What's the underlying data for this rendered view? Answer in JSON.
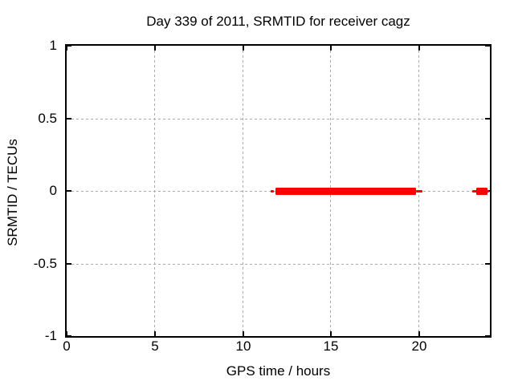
{
  "chart_data": {
    "type": "line",
    "title": "Day 339 of 2011, SRMTID for receiver cagz",
    "xlabel": "GPS time / hours",
    "ylabel": "SRMTID / TECUs",
    "xlim": [
      0,
      24
    ],
    "ylim": [
      -1,
      1
    ],
    "xticks": [
      0,
      5,
      10,
      15,
      20
    ],
    "xtick_labels": [
      "0",
      "5",
      "10",
      "15",
      "20"
    ],
    "yticks": [
      -1,
      -0.5,
      0,
      0.5,
      1
    ],
    "ytick_labels": [
      "-1",
      "-0.5",
      "0",
      "0.5",
      "1"
    ],
    "grid": true,
    "legend_position": "none",
    "colors": {
      "series": "#ff0000",
      "grid": "#aaaaaa",
      "border": "#000000",
      "background": "#ffffff",
      "text": "#000000"
    },
    "series": [
      {
        "name": "SRMTID",
        "color": "#ff0000",
        "segments": [
          {
            "x_start": 11.55,
            "x_end": 11.74,
            "y": 0,
            "linewidth": 3
          },
          {
            "x_start": 11.84,
            "x_end": 19.8,
            "y": 0,
            "linewidth": 9
          },
          {
            "x_start": 19.8,
            "x_end": 20.16,
            "y": 0,
            "linewidth": 3
          },
          {
            "x_start": 23.02,
            "x_end": 23.97,
            "y": 0,
            "linewidth": 3
          },
          {
            "x_start": 23.24,
            "x_end": 23.86,
            "y": 0,
            "linewidth": 9
          }
        ]
      }
    ]
  }
}
